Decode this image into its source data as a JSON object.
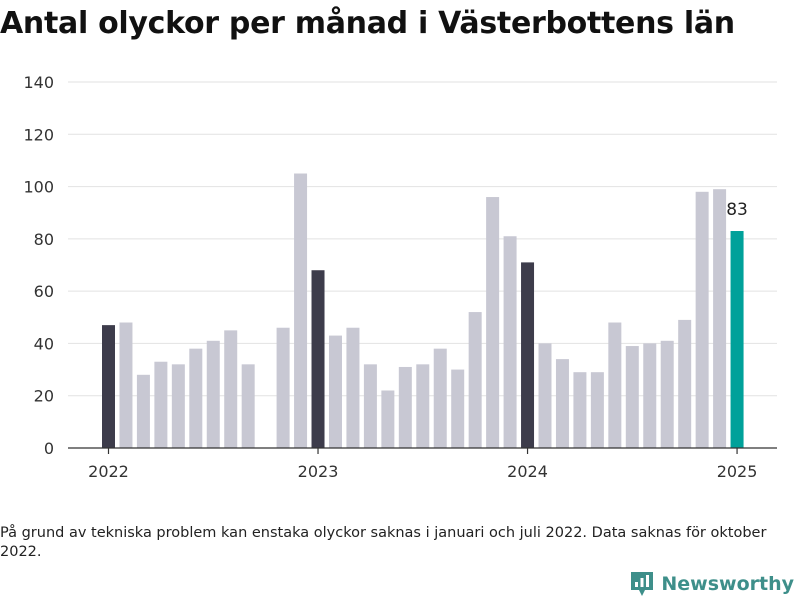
{
  "title": "Antal olyckor per månad i Västerbottens län",
  "footnote": "På grund av tekniska problem kan enstaka olyckor saknas i januari och juli 2022. Data saknas för oktober 2022.",
  "brand": {
    "name": "Newsworthy",
    "icon": "newsworthy-logo-icon",
    "color": "#3e8f8a"
  },
  "chart_data": {
    "type": "bar",
    "title": "Antal olyckor per månad i Västerbottens län",
    "xlabel": "",
    "ylabel": "",
    "ylim": [
      0,
      140
    ],
    "yticks": [
      0,
      20,
      40,
      60,
      80,
      100,
      120,
      140
    ],
    "grid": true,
    "colors": {
      "default": "#c8c8d3",
      "january": "#3d3c4b",
      "latest": "#00a19a"
    },
    "xticks": [
      {
        "label": "2022",
        "category": "2022-01"
      },
      {
        "label": "2023",
        "category": "2023-01"
      },
      {
        "label": "2024",
        "category": "2024-01"
      },
      {
        "label": "2025",
        "category": "2025-01"
      }
    ],
    "categories": [
      "2022-01",
      "2022-02",
      "2022-03",
      "2022-04",
      "2022-05",
      "2022-06",
      "2022-07",
      "2022-08",
      "2022-09",
      "2022-10",
      "2022-11",
      "2022-12",
      "2023-01",
      "2023-02",
      "2023-03",
      "2023-04",
      "2023-05",
      "2023-06",
      "2023-07",
      "2023-08",
      "2023-09",
      "2023-10",
      "2023-11",
      "2023-12",
      "2024-01",
      "2024-02",
      "2024-03",
      "2024-04",
      "2024-05",
      "2024-06",
      "2024-07",
      "2024-08",
      "2024-09",
      "2024-10",
      "2024-11",
      "2024-12",
      "2025-01"
    ],
    "values": [
      47,
      48,
      28,
      33,
      32,
      38,
      41,
      45,
      32,
      null,
      46,
      105,
      68,
      43,
      46,
      32,
      22,
      31,
      32,
      38,
      30,
      52,
      96,
      81,
      71,
      40,
      34,
      29,
      29,
      48,
      39,
      40,
      41,
      49,
      98,
      99,
      83
    ],
    "highlighted": [
      "2022-01",
      "2023-01",
      "2024-01"
    ],
    "latest": "2025-01",
    "annotations": [
      {
        "category": "2025-01",
        "text": "83"
      }
    ]
  }
}
